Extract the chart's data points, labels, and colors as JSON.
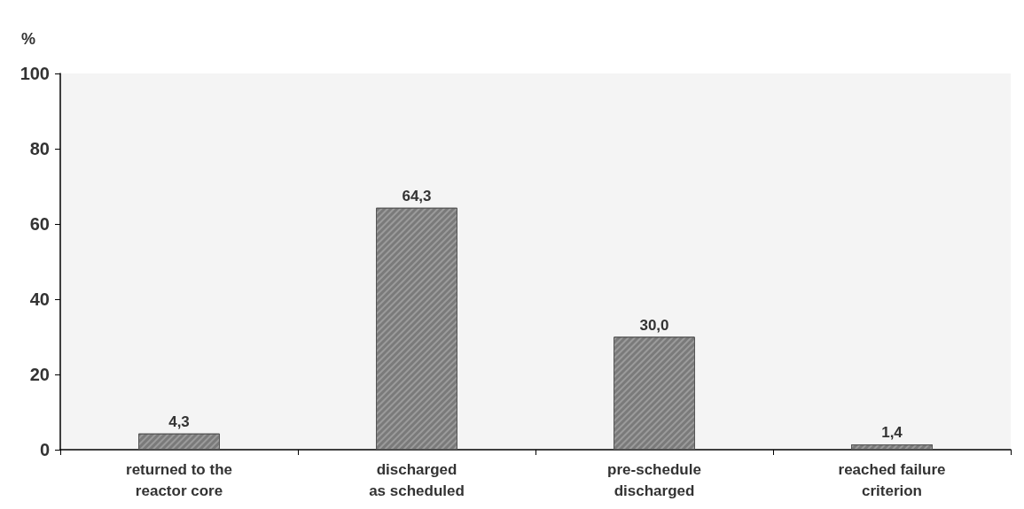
{
  "chart_data": {
    "type": "bar",
    "ylabel": "%",
    "categories": [
      "returned to the\nreactor core",
      "discharged\nas scheduled",
      "pre-schedule\ndischarged",
      "reached failure\ncriterion"
    ],
    "values": [
      4.3,
      64.3,
      30.0,
      1.4
    ],
    "value_labels": [
      "4,3",
      "64,3",
      "30,0",
      "1,4"
    ],
    "color": "#7a7a7a",
    "ylim": [
      0,
      100
    ],
    "yticks": [
      0,
      20,
      40,
      60,
      80,
      100
    ],
    "grid": false
  }
}
